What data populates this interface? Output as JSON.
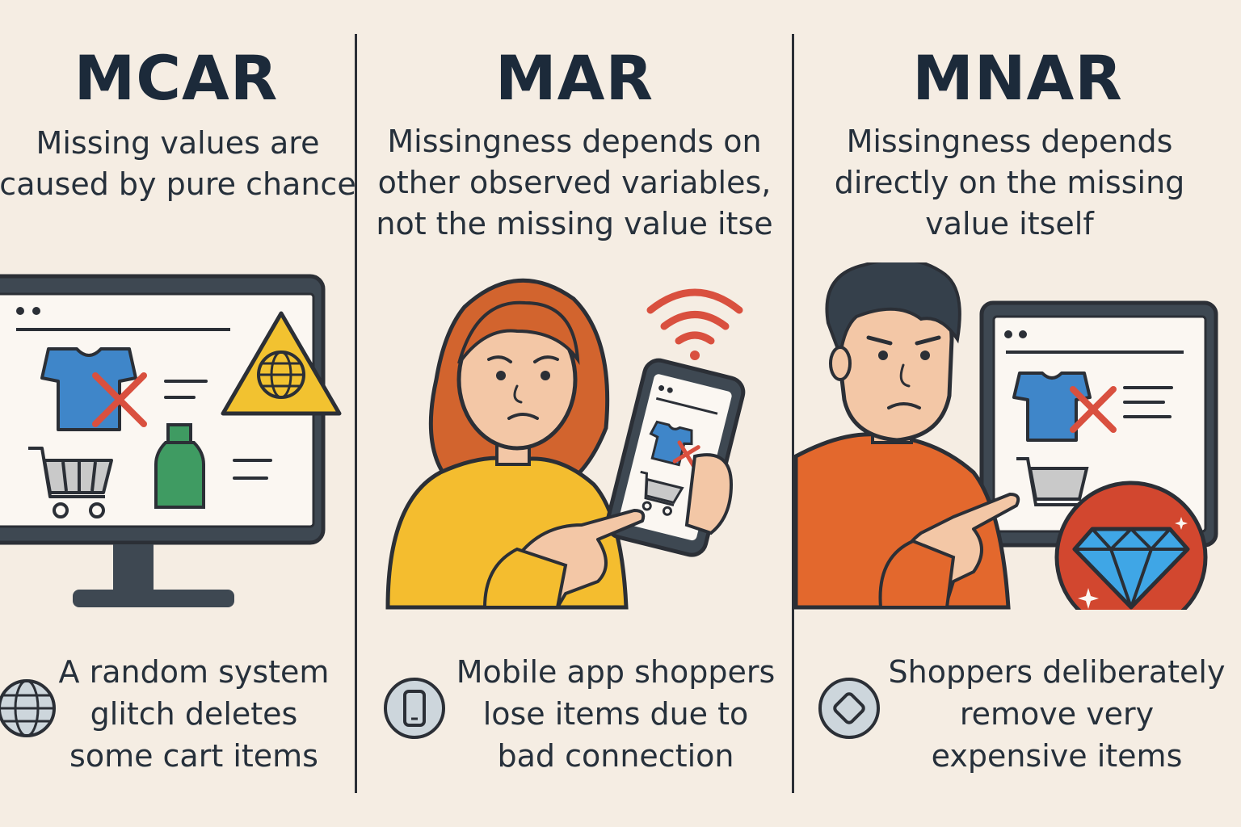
{
  "panels": [
    {
      "title": "MCAR",
      "description": [
        "Missing values are",
        "caused by pure chance"
      ],
      "example": [
        "A  random system",
        "glitch deletes",
        "some cart items"
      ],
      "badge_icon": "globe-icon"
    },
    {
      "title": "MAR",
      "description": [
        "Missingness depends on",
        "other observed variables,",
        "not the missing value itse"
      ],
      "example": [
        "Mobile app shoppers",
        "lose items due to",
        "bad connection"
      ],
      "badge_icon": "smartphone-icon"
    },
    {
      "title": "MNAR",
      "description": [
        "Missingness depends",
        "directly on the missing",
        "value itself"
      ],
      "example": [
        "Shoppers deliberately",
        "remove very",
        "expensive items"
      ],
      "badge_icon": "diamond-icon"
    }
  ],
  "colors": {
    "background": "#f5ede3",
    "ink": "#2b2f36",
    "shirt_blue": "#3f86c9",
    "cross_red": "#d9503f",
    "warning_yellow": "#f2c230",
    "bottle_green": "#3f9b62",
    "sweater_yellow": "#f4bd2f",
    "hair_orange": "#d2642e",
    "shirt_orange": "#e3682d",
    "diamond_blue": "#3fa6e6",
    "badge_red": "#d2472f"
  }
}
